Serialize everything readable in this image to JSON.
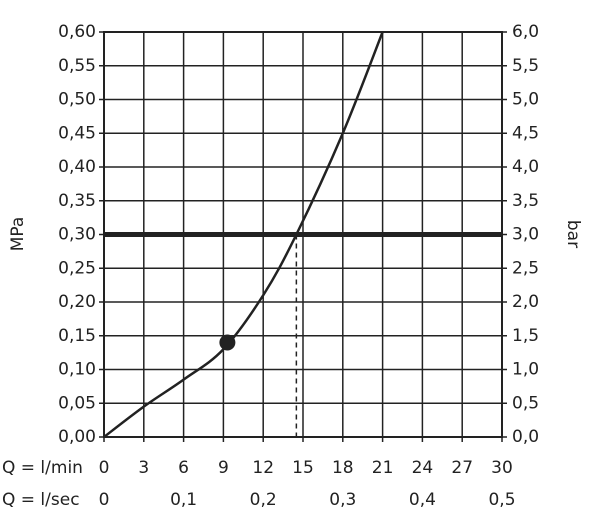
{
  "chart_data": {
    "type": "line",
    "y_label": "MPa",
    "y2_label": "bar",
    "x_row_label": "Q = l/min",
    "x2_row_label": "Q = l/sec",
    "x": [
      0,
      3,
      6,
      9,
      12,
      14.5,
      18,
      21
    ],
    "series": [
      {
        "color": "#222222",
        "values": [
          0,
          0.045,
          0.085,
          0.13,
          0.21,
          0.3,
          0.45,
          0.6
        ]
      }
    ],
    "reference_y": 0.3,
    "reference_color": "#222222",
    "operating_point": {
      "x": 9.3,
      "y": 0.14
    },
    "drop_x": 14.5,
    "xlim": [
      0,
      30
    ],
    "xticks": [
      0,
      3,
      6,
      9,
      12,
      15,
      18,
      21,
      24,
      27,
      30
    ],
    "x2lim": [
      0,
      0.5
    ],
    "x2ticks": [
      {
        "value": 0,
        "label": "0"
      },
      {
        "value": 0.1,
        "label": "0,1"
      },
      {
        "value": 0.2,
        "label": "0,2"
      },
      {
        "value": 0.3,
        "label": "0,3"
      },
      {
        "value": 0.4,
        "label": "0,4"
      },
      {
        "value": 0.5,
        "label": "0,5"
      }
    ],
    "ylim": [
      0,
      0.6
    ],
    "yticks": [
      {
        "value": 0,
        "label": "0,00"
      },
      {
        "value": 0.05,
        "label": "0,05"
      },
      {
        "value": 0.1,
        "label": "0,10"
      },
      {
        "value": 0.15,
        "label": "0,15"
      },
      {
        "value": 0.2,
        "label": "0,20"
      },
      {
        "value": 0.25,
        "label": "0,25"
      },
      {
        "value": 0.3,
        "label": "0,30"
      },
      {
        "value": 0.35,
        "label": "0,35"
      },
      {
        "value": 0.4,
        "label": "0,40"
      },
      {
        "value": 0.45,
        "label": "0,45"
      },
      {
        "value": 0.5,
        "label": "0,50"
      },
      {
        "value": 0.55,
        "label": "0,55"
      },
      {
        "value": 0.6,
        "label": "0,60"
      }
    ],
    "y2lim": [
      0,
      6
    ],
    "y2ticks": [
      {
        "value": 0,
        "label": "0,0"
      },
      {
        "value": 0.5,
        "label": "0,5"
      },
      {
        "value": 1,
        "label": "1,0"
      },
      {
        "value": 1.5,
        "label": "1,5"
      },
      {
        "value": 2,
        "label": "2,0"
      },
      {
        "value": 2.5,
        "label": "2,5"
      },
      {
        "value": 3,
        "label": "3,0"
      },
      {
        "value": 3.5,
        "label": "3,5"
      },
      {
        "value": 4,
        "label": "4,0"
      },
      {
        "value": 4.5,
        "label": "4,5"
      },
      {
        "value": 5,
        "label": "5,0"
      },
      {
        "value": 5.5,
        "label": "5,5"
      },
      {
        "value": 6,
        "label": "6,0"
      }
    ],
    "grid": true
  }
}
